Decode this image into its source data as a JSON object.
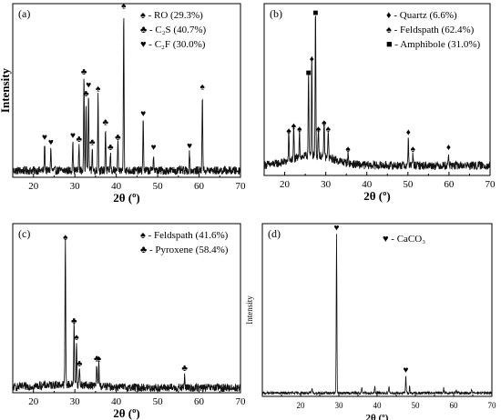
{
  "chart_data": [
    {
      "type": "line",
      "panel_label": "(a)",
      "xlabel": "2θ (º)",
      "ylabel": "Intensity",
      "xlim": [
        15,
        70
      ],
      "xticks": [
        20,
        30,
        40,
        50,
        60,
        70
      ],
      "legend": [
        {
          "symbol": "♠",
          "label": "- RO (29.3%)"
        },
        {
          "symbol": "♣",
          "label": "- C₂S (40.7%)"
        },
        {
          "symbol": "♥",
          "label": "- C₂F (30.0%)"
        }
      ],
      "peaks": [
        {
          "x": 22.7,
          "y": 0.16,
          "symbol": "♥"
        },
        {
          "x": 24.2,
          "y": 0.13,
          "symbol": "♥"
        },
        {
          "x": 29.5,
          "y": 0.17,
          "symbol": "♥"
        },
        {
          "x": 31.0,
          "y": 0.15,
          "symbol": "♣"
        },
        {
          "x": 32.2,
          "y": 0.55,
          "symbol": "♣"
        },
        {
          "x": 32.7,
          "y": 0.42,
          "symbol": "♣"
        },
        {
          "x": 33.3,
          "y": 0.47,
          "symbol": "♥"
        },
        {
          "x": 34.2,
          "y": 0.13,
          "symbol": "♣"
        },
        {
          "x": 35.6,
          "y": 0.45,
          "symbol": "♠"
        },
        {
          "x": 37.4,
          "y": 0.25,
          "symbol": "♣"
        },
        {
          "x": 38.6,
          "y": 0.1,
          "symbol": "♣"
        },
        {
          "x": 40.4,
          "y": 0.16,
          "symbol": "♣"
        },
        {
          "x": 41.8,
          "y": 0.94,
          "symbol": "♠"
        },
        {
          "x": 46.5,
          "y": 0.3,
          "symbol": "♥"
        },
        {
          "x": 49.0,
          "y": 0.1,
          "symbol": "♥"
        },
        {
          "x": 57.7,
          "y": 0.11,
          "symbol": "♥"
        },
        {
          "x": 60.8,
          "y": 0.46,
          "symbol": "♠"
        }
      ],
      "baseline": 0.04
    },
    {
      "type": "line",
      "panel_label": "(b)",
      "xlabel": "2θ (º)",
      "ylabel": "",
      "xlim": [
        15,
        70
      ],
      "xticks": [
        20,
        30,
        40,
        50,
        60,
        70
      ],
      "legend": [
        {
          "symbol": "♦",
          "label": "- Quartz (6.6%)"
        },
        {
          "symbol": "♠",
          "label": "- Feldspath (62.4%)"
        },
        {
          "symbol": "■",
          "label": "- Amphibole (31.0%)"
        }
      ],
      "peaks": [
        {
          "x": 21.0,
          "y": 0.17,
          "symbol": "♠"
        },
        {
          "x": 22.2,
          "y": 0.2,
          "symbol": "♠"
        },
        {
          "x": 23.6,
          "y": 0.18,
          "symbol": "♠"
        },
        {
          "x": 25.8,
          "y": 0.52,
          "symbol": "■"
        },
        {
          "x": 26.6,
          "y": 0.6,
          "symbol": "♦"
        },
        {
          "x": 27.5,
          "y": 0.88,
          "symbol": "■"
        },
        {
          "x": 28.2,
          "y": 0.18,
          "symbol": "♠"
        },
        {
          "x": 29.6,
          "y": 0.22,
          "symbol": "♠"
        },
        {
          "x": 30.6,
          "y": 0.18,
          "symbol": "♠"
        },
        {
          "x": 35.4,
          "y": 0.06,
          "symbol": "♠"
        },
        {
          "x": 50.1,
          "y": 0.16,
          "symbol": "♦"
        },
        {
          "x": 51.2,
          "y": 0.06,
          "symbol": "♠"
        },
        {
          "x": 59.9,
          "y": 0.07,
          "symbol": "♦"
        }
      ],
      "baseline": 0.06
    },
    {
      "type": "line",
      "panel_label": "(c)",
      "xlabel": "2θ (º)",
      "ylabel": "",
      "xlim": [
        15,
        70
      ],
      "xticks": [
        20,
        30,
        40,
        50,
        60,
        70
      ],
      "legend": [
        {
          "symbol": "♠",
          "label": "- Feldspath (41.6%)"
        },
        {
          "symbol": "♣",
          "label": "- Pyroxene (58.4%)"
        }
      ],
      "peaks": [
        {
          "x": 27.7,
          "y": 0.88,
          "symbol": "♠"
        },
        {
          "x": 29.8,
          "y": 0.37,
          "symbol": "♣"
        },
        {
          "x": 30.4,
          "y": 0.27,
          "symbol": "♠"
        },
        {
          "x": 31.1,
          "y": 0.11,
          "symbol": "♣"
        },
        {
          "x": 35.3,
          "y": 0.14,
          "symbol": "♣"
        },
        {
          "x": 35.8,
          "y": 0.14,
          "symbol": "♠"
        },
        {
          "x": 56.5,
          "y": 0.08,
          "symbol": "♣"
        }
      ],
      "baseline": 0.03
    },
    {
      "type": "line",
      "panel_label": "(d)",
      "xlabel": "2θ (º)",
      "ylabel": "Intensity",
      "xlim": [
        10,
        70
      ],
      "xticks": [
        20,
        30,
        40,
        50,
        60,
        70
      ],
      "legend": [
        {
          "symbol": "♥",
          "label": "- CaCO₃"
        }
      ],
      "peaks": [
        {
          "x": 23.0,
          "y": 0.03,
          "symbol": ""
        },
        {
          "x": 29.4,
          "y": 0.95,
          "symbol": "♥"
        },
        {
          "x": 36.0,
          "y": 0.03,
          "symbol": ""
        },
        {
          "x": 39.4,
          "y": 0.04,
          "symbol": ""
        },
        {
          "x": 43.1,
          "y": 0.04,
          "symbol": ""
        },
        {
          "x": 47.5,
          "y": 0.1,
          "symbol": "♥"
        },
        {
          "x": 48.5,
          "y": 0.04,
          "symbol": ""
        },
        {
          "x": 57.4,
          "y": 0.03,
          "symbol": ""
        },
        {
          "x": 60.7,
          "y": 0.02,
          "symbol": ""
        },
        {
          "x": 64.7,
          "y": 0.02,
          "symbol": ""
        }
      ],
      "baseline": 0.02
    }
  ]
}
